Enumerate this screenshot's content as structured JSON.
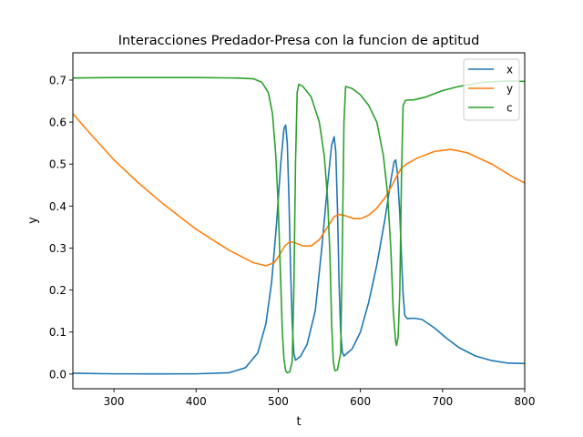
{
  "chart_data": {
    "type": "line",
    "title": "Interacciones Predador-Presa con la funcion de aptitud",
    "xlabel": "t",
    "ylabel": "y",
    "xlim": [
      250,
      800
    ],
    "ylim": [
      -0.035,
      0.765
    ],
    "xticks": [
      300,
      400,
      500,
      600,
      700,
      800
    ],
    "xtick_labels": [
      "300",
      "400",
      "500",
      "600",
      "700",
      "800"
    ],
    "yticks": [
      0.0,
      0.1,
      0.2,
      0.3,
      0.4,
      0.5,
      0.6,
      0.7
    ],
    "ytick_labels": [
      "0.0",
      "0.1",
      "0.2",
      "0.3",
      "0.4",
      "0.5",
      "0.6",
      "0.7"
    ],
    "grid": false,
    "legend_position": "top-right",
    "series": [
      {
        "name": "x",
        "color": "#1f77b4",
        "points": [
          [
            250,
            0.002
          ],
          [
            300,
            0.0005
          ],
          [
            350,
            0.0003
          ],
          [
            400,
            0.0005
          ],
          [
            440,
            0.003
          ],
          [
            460,
            0.015
          ],
          [
            475,
            0.05
          ],
          [
            485,
            0.12
          ],
          [
            492,
            0.22
          ],
          [
            498,
            0.36
          ],
          [
            503,
            0.5
          ],
          [
            507,
            0.585
          ],
          [
            509,
            0.593
          ],
          [
            511,
            0.55
          ],
          [
            513,
            0.42
          ],
          [
            515,
            0.25
          ],
          [
            517,
            0.12
          ],
          [
            519,
            0.05
          ],
          [
            521,
            0.033
          ],
          [
            527,
            0.042
          ],
          [
            535,
            0.07
          ],
          [
            545,
            0.15
          ],
          [
            553,
            0.3
          ],
          [
            560,
            0.45
          ],
          [
            565,
            0.545
          ],
          [
            568,
            0.565
          ],
          [
            570,
            0.53
          ],
          [
            572,
            0.4
          ],
          [
            574,
            0.22
          ],
          [
            576,
            0.1
          ],
          [
            578,
            0.052
          ],
          [
            580,
            0.043
          ],
          [
            590,
            0.06
          ],
          [
            600,
            0.1
          ],
          [
            610,
            0.17
          ],
          [
            620,
            0.26
          ],
          [
            630,
            0.37
          ],
          [
            637,
            0.46
          ],
          [
            641,
            0.505
          ],
          [
            643,
            0.51
          ],
          [
            645,
            0.48
          ],
          [
            648,
            0.38
          ],
          [
            650,
            0.28
          ],
          [
            652,
            0.19
          ],
          [
            654,
            0.14
          ],
          [
            657,
            0.132
          ],
          [
            665,
            0.133
          ],
          [
            675,
            0.13
          ],
          [
            690,
            0.11
          ],
          [
            705,
            0.085
          ],
          [
            720,
            0.063
          ],
          [
            740,
            0.043
          ],
          [
            760,
            0.032
          ],
          [
            780,
            0.026
          ],
          [
            800,
            0.025
          ]
        ]
      },
      {
        "name": "y",
        "color": "#ff7f0e",
        "points": [
          [
            250,
            0.62
          ],
          [
            270,
            0.575
          ],
          [
            300,
            0.51
          ],
          [
            330,
            0.455
          ],
          [
            360,
            0.405
          ],
          [
            400,
            0.345
          ],
          [
            440,
            0.295
          ],
          [
            470,
            0.265
          ],
          [
            485,
            0.258
          ],
          [
            495,
            0.265
          ],
          [
            502,
            0.285
          ],
          [
            508,
            0.305
          ],
          [
            514,
            0.315
          ],
          [
            520,
            0.313
          ],
          [
            530,
            0.305
          ],
          [
            540,
            0.305
          ],
          [
            550,
            0.32
          ],
          [
            560,
            0.35
          ],
          [
            568,
            0.375
          ],
          [
            574,
            0.38
          ],
          [
            582,
            0.377
          ],
          [
            592,
            0.37
          ],
          [
            600,
            0.37
          ],
          [
            610,
            0.378
          ],
          [
            620,
            0.395
          ],
          [
            630,
            0.42
          ],
          [
            640,
            0.455
          ],
          [
            646,
            0.478
          ],
          [
            650,
            0.49
          ],
          [
            656,
            0.5
          ],
          [
            670,
            0.515
          ],
          [
            690,
            0.53
          ],
          [
            710,
            0.535
          ],
          [
            730,
            0.527
          ],
          [
            760,
            0.5
          ],
          [
            785,
            0.47
          ],
          [
            800,
            0.455
          ]
        ]
      },
      {
        "name": "c",
        "color": "#2ca02c",
        "points": [
          [
            250,
            0.705
          ],
          [
            300,
            0.706
          ],
          [
            400,
            0.706
          ],
          [
            450,
            0.705
          ],
          [
            470,
            0.703
          ],
          [
            480,
            0.695
          ],
          [
            488,
            0.67
          ],
          [
            493,
            0.62
          ],
          [
            497,
            0.52
          ],
          [
            500,
            0.4
          ],
          [
            503,
            0.22
          ],
          [
            505,
            0.1
          ],
          [
            507,
            0.035
          ],
          [
            509,
            0.008
          ],
          [
            511,
            0.003
          ],
          [
            514,
            0.005
          ],
          [
            517,
            0.03
          ],
          [
            519,
            0.2
          ],
          [
            521,
            0.5
          ],
          [
            523,
            0.67
          ],
          [
            525,
            0.69
          ],
          [
            530,
            0.685
          ],
          [
            540,
            0.66
          ],
          [
            550,
            0.6
          ],
          [
            556,
            0.52
          ],
          [
            560,
            0.42
          ],
          [
            563,
            0.28
          ],
          [
            565,
            0.12
          ],
          [
            567,
            0.03
          ],
          [
            569,
            0.008
          ],
          [
            572,
            0.01
          ],
          [
            576,
            0.05
          ],
          [
            578,
            0.3
          ],
          [
            580,
            0.6
          ],
          [
            582,
            0.685
          ],
          [
            590,
            0.68
          ],
          [
            600,
            0.665
          ],
          [
            610,
            0.64
          ],
          [
            620,
            0.6
          ],
          [
            628,
            0.52
          ],
          [
            633,
            0.43
          ],
          [
            637,
            0.3
          ],
          [
            640,
            0.15
          ],
          [
            643,
            0.075
          ],
          [
            644,
            0.068
          ],
          [
            646,
            0.09
          ],
          [
            648,
            0.2
          ],
          [
            650,
            0.47
          ],
          [
            652,
            0.64
          ],
          [
            655,
            0.652
          ],
          [
            665,
            0.653
          ],
          [
            680,
            0.66
          ],
          [
            700,
            0.675
          ],
          [
            720,
            0.685
          ],
          [
            750,
            0.695
          ],
          [
            780,
            0.698
          ],
          [
            800,
            0.697
          ]
        ]
      }
    ]
  }
}
